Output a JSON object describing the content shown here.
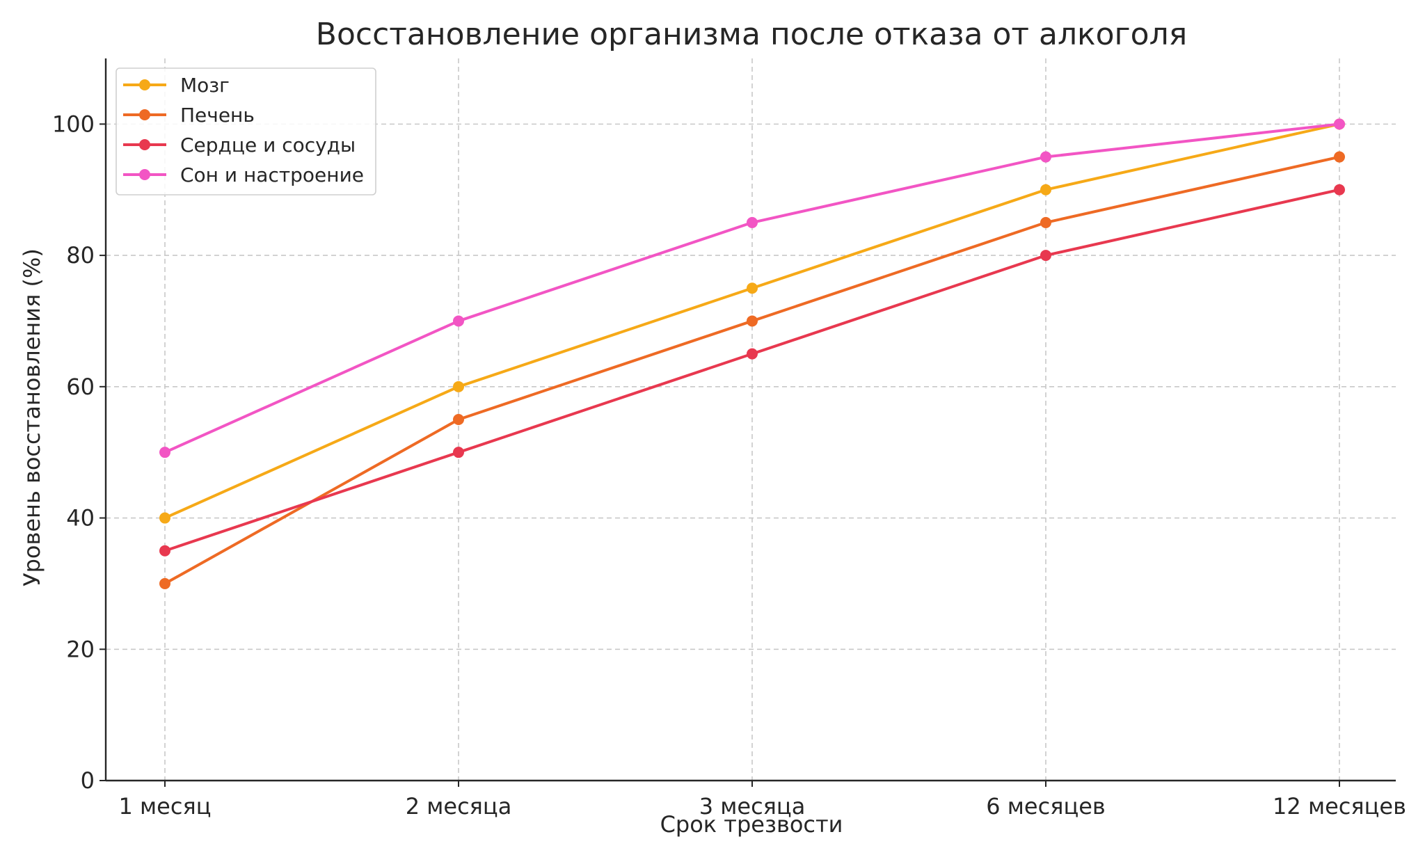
{
  "chart_data": {
    "type": "line",
    "title": "Восстановление организма после отказа от алкоголя",
    "xlabel": "Срок трезвости",
    "ylabel": "Уровень восстановления (%)",
    "categories": [
      "1 месяц",
      "2 месяца",
      "3 месяца",
      "6 месяцев",
      "12 месяцев"
    ],
    "ylim": [
      0,
      110
    ],
    "yticks": [
      0,
      20,
      40,
      60,
      80,
      100
    ],
    "grid": true,
    "legend_position": "top-left",
    "series": [
      {
        "name": "Мозг",
        "color": "#F6A917",
        "values": [
          40,
          60,
          75,
          90,
          100
        ]
      },
      {
        "name": "Печень",
        "color": "#EE6A24",
        "values": [
          30,
          55,
          70,
          85,
          95
        ]
      },
      {
        "name": "Сердце и сосуды",
        "color": "#E8384F",
        "values": [
          35,
          50,
          65,
          80,
          90
        ]
      },
      {
        "name": "Сон и настроение",
        "color": "#F255C4",
        "values": [
          50,
          70,
          85,
          95,
          100
        ]
      }
    ]
  }
}
